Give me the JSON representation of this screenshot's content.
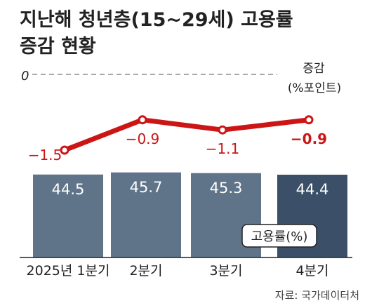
{
  "title": {
    "line1": "지난해 청년층(15~29세) 고용률",
    "line2": "증감 현황"
  },
  "source": "자료: 국가데이터처",
  "chart_data": {
    "type": "bar",
    "categories": [
      "2025년 1분기",
      "2분기",
      "3분기",
      "4분기"
    ],
    "series": [
      {
        "name": "고용률(%)",
        "type": "bar",
        "values": [
          44.5,
          45.7,
          45.3,
          44.4
        ],
        "value_labels": [
          "44.5",
          "45.7",
          "45.3",
          "44.4"
        ],
        "colors": [
          "#5f7489",
          "#5f7489",
          "#5f7489",
          "#3b5068"
        ]
      },
      {
        "name": "증감(%포인트)",
        "type": "line",
        "values": [
          -1.5,
          -0.9,
          -1.1,
          -0.9
        ],
        "value_labels": [
          "−1.5",
          "−0.9",
          "−1.1",
          "−0.9"
        ],
        "color": "#cc1515"
      }
    ],
    "line_axis": {
      "zero_label": "0",
      "unit_label_1": "증감",
      "unit_label_2": "(%포인트)"
    },
    "bar_legend": "고용률(%)"
  }
}
